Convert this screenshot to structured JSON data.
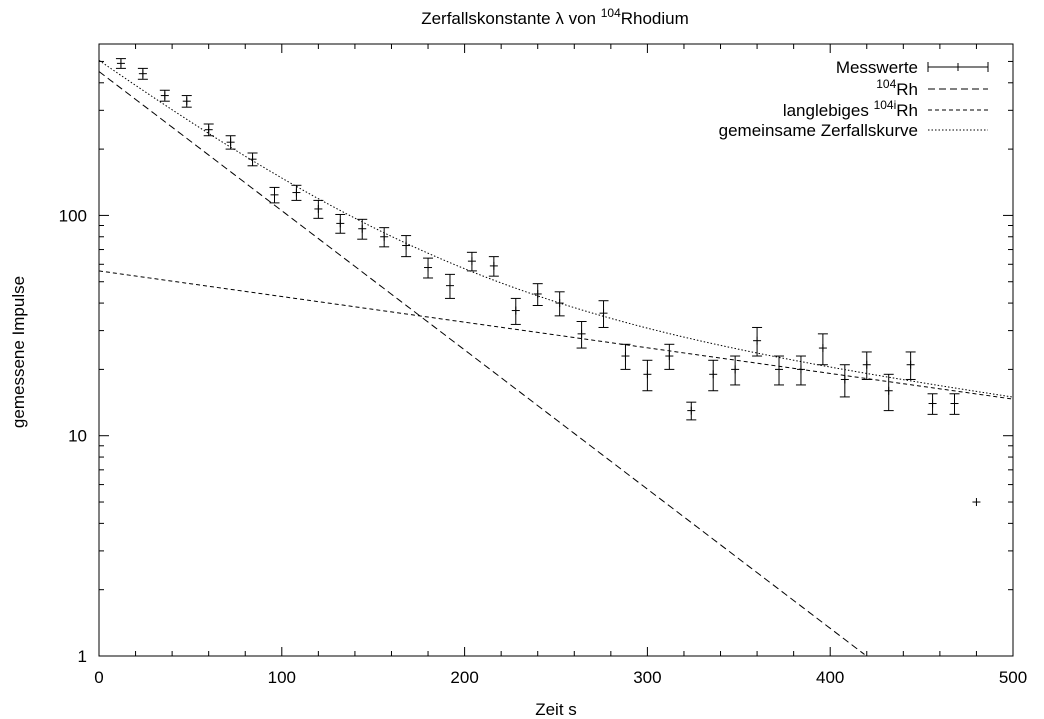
{
  "chart_data": {
    "type": "scatter",
    "title": "Zerfallskonstante λ von ",
    "title_sup": "104",
    "title_tail": "Rhodium",
    "xlabel": "Zeit s",
    "ylabel": "gemessene Impulse",
    "xlim": [
      0,
      500
    ],
    "ylim": [
      1,
      600
    ],
    "y_scale": "log",
    "x_ticks": [
      0,
      100,
      200,
      300,
      400,
      500
    ],
    "x_tick_labels": [
      "0",
      "100",
      "200",
      "300",
      "400",
      "500"
    ],
    "y_ticks": [
      1,
      10,
      100
    ],
    "y_tick_labels": [
      "1",
      "10",
      "100"
    ],
    "grid": false,
    "legend_position": "top-right",
    "legend": [
      {
        "label": "Messwerte",
        "sup": "",
        "tail": "",
        "style": "errorbar"
      },
      {
        "label": "",
        "sup": "104",
        "tail": "Rh",
        "style": "dashed"
      },
      {
        "label": "langlebiges ",
        "sup": "104i",
        "tail": "Rh",
        "style": "short-dashed"
      },
      {
        "label": "gemeinsame Zerfallskurve",
        "sup": "",
        "tail": "",
        "style": "dotted"
      }
    ],
    "measurements": [
      {
        "x": 12,
        "y": 490,
        "err": 25
      },
      {
        "x": 24,
        "y": 440,
        "err": 25
      },
      {
        "x": 36,
        "y": 350,
        "err": 20
      },
      {
        "x": 48,
        "y": 330,
        "err": 20
      },
      {
        "x": 60,
        "y": 245,
        "err": 15
      },
      {
        "x": 72,
        "y": 215,
        "err": 15
      },
      {
        "x": 84,
        "y": 180,
        "err": 12
      },
      {
        "x": 96,
        "y": 124,
        "err": 10
      },
      {
        "x": 108,
        "y": 127,
        "err": 10
      },
      {
        "x": 120,
        "y": 107,
        "err": 10
      },
      {
        "x": 132,
        "y": 92,
        "err": 9
      },
      {
        "x": 144,
        "y": 87,
        "err": 9
      },
      {
        "x": 156,
        "y": 80,
        "err": 8
      },
      {
        "x": 168,
        "y": 73,
        "err": 8
      },
      {
        "x": 180,
        "y": 58,
        "err": 6
      },
      {
        "x": 192,
        "y": 48,
        "err": 6
      },
      {
        "x": 204,
        "y": 62,
        "err": 6
      },
      {
        "x": 216,
        "y": 59,
        "err": 6
      },
      {
        "x": 228,
        "y": 37,
        "err": 5
      },
      {
        "x": 240,
        "y": 44,
        "err": 5
      },
      {
        "x": 252,
        "y": 40,
        "err": 5
      },
      {
        "x": 264,
        "y": 29,
        "err": 4
      },
      {
        "x": 276,
        "y": 36,
        "err": 5
      },
      {
        "x": 288,
        "y": 23,
        "err": 3
      },
      {
        "x": 300,
        "y": 19,
        "err": 3
      },
      {
        "x": 312,
        "y": 23,
        "err": 3
      },
      {
        "x": 324,
        "y": 13,
        "err": 1.2
      },
      {
        "x": 336,
        "y": 19,
        "err": 3
      },
      {
        "x": 348,
        "y": 20,
        "err": 3
      },
      {
        "x": 360,
        "y": 27,
        "err": 4
      },
      {
        "x": 372,
        "y": 20,
        "err": 3
      },
      {
        "x": 384,
        "y": 20,
        "err": 3
      },
      {
        "x": 396,
        "y": 25,
        "err": 4
      },
      {
        "x": 408,
        "y": 18,
        "err": 3
      },
      {
        "x": 420,
        "y": 21,
        "err": 3
      },
      {
        "x": 432,
        "y": 16,
        "err": 3
      },
      {
        "x": 444,
        "y": 21,
        "err": 3
      },
      {
        "x": 456,
        "y": 14,
        "err": 1.5
      },
      {
        "x": 468,
        "y": 14,
        "err": 1.5
      },
      {
        "x": 480,
        "y": 5,
        "err": 0
      }
    ],
    "fit_rh104": {
      "a": 450,
      "lambda": 0.01455
    },
    "fit_rh104i": {
      "a": 56,
      "lambda": 0.00268
    },
    "fit_combined": {
      "a1": 450,
      "lambda1": 0.01455,
      "a2": 56,
      "lambda2": 0.00268
    }
  }
}
